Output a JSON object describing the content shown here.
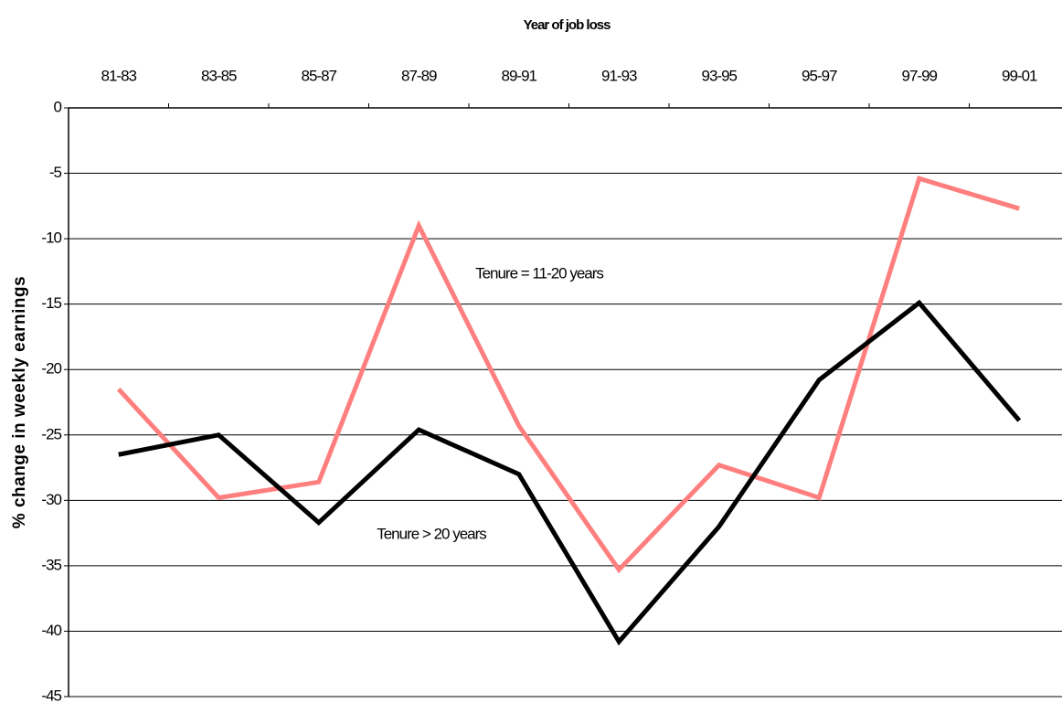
{
  "chart_data": {
    "type": "line",
    "x_label": "Year of job loss",
    "y_label": "% change in  weekly earnings",
    "categories": [
      "81-83",
      "83-85",
      "85-87",
      "87-89",
      "89-91",
      "91-93",
      "93-95",
      "95-97",
      "97-99",
      "99-01"
    ],
    "series": [
      {
        "name": "Tenure = 11-20 years",
        "color": "#ff7f7f",
        "values": [
          -21.5,
          -29.8,
          -28.6,
          -9.0,
          -24.3,
          -35.3,
          -27.3,
          -29.8,
          -5.4,
          -7.7
        ]
      },
      {
        "name": "Tenure > 20 years",
        "color": "#000000",
        "values": [
          -26.5,
          -25.0,
          -31.7,
          -24.6,
          -28.0,
          -40.8,
          -32.0,
          -20.8,
          -14.9,
          -23.9
        ]
      }
    ],
    "ylim": [
      -45,
      0
    ],
    "yticks": [
      0,
      -5,
      -10,
      -15,
      -20,
      -25,
      -30,
      -35,
      -40,
      -45
    ],
    "grid": true
  }
}
